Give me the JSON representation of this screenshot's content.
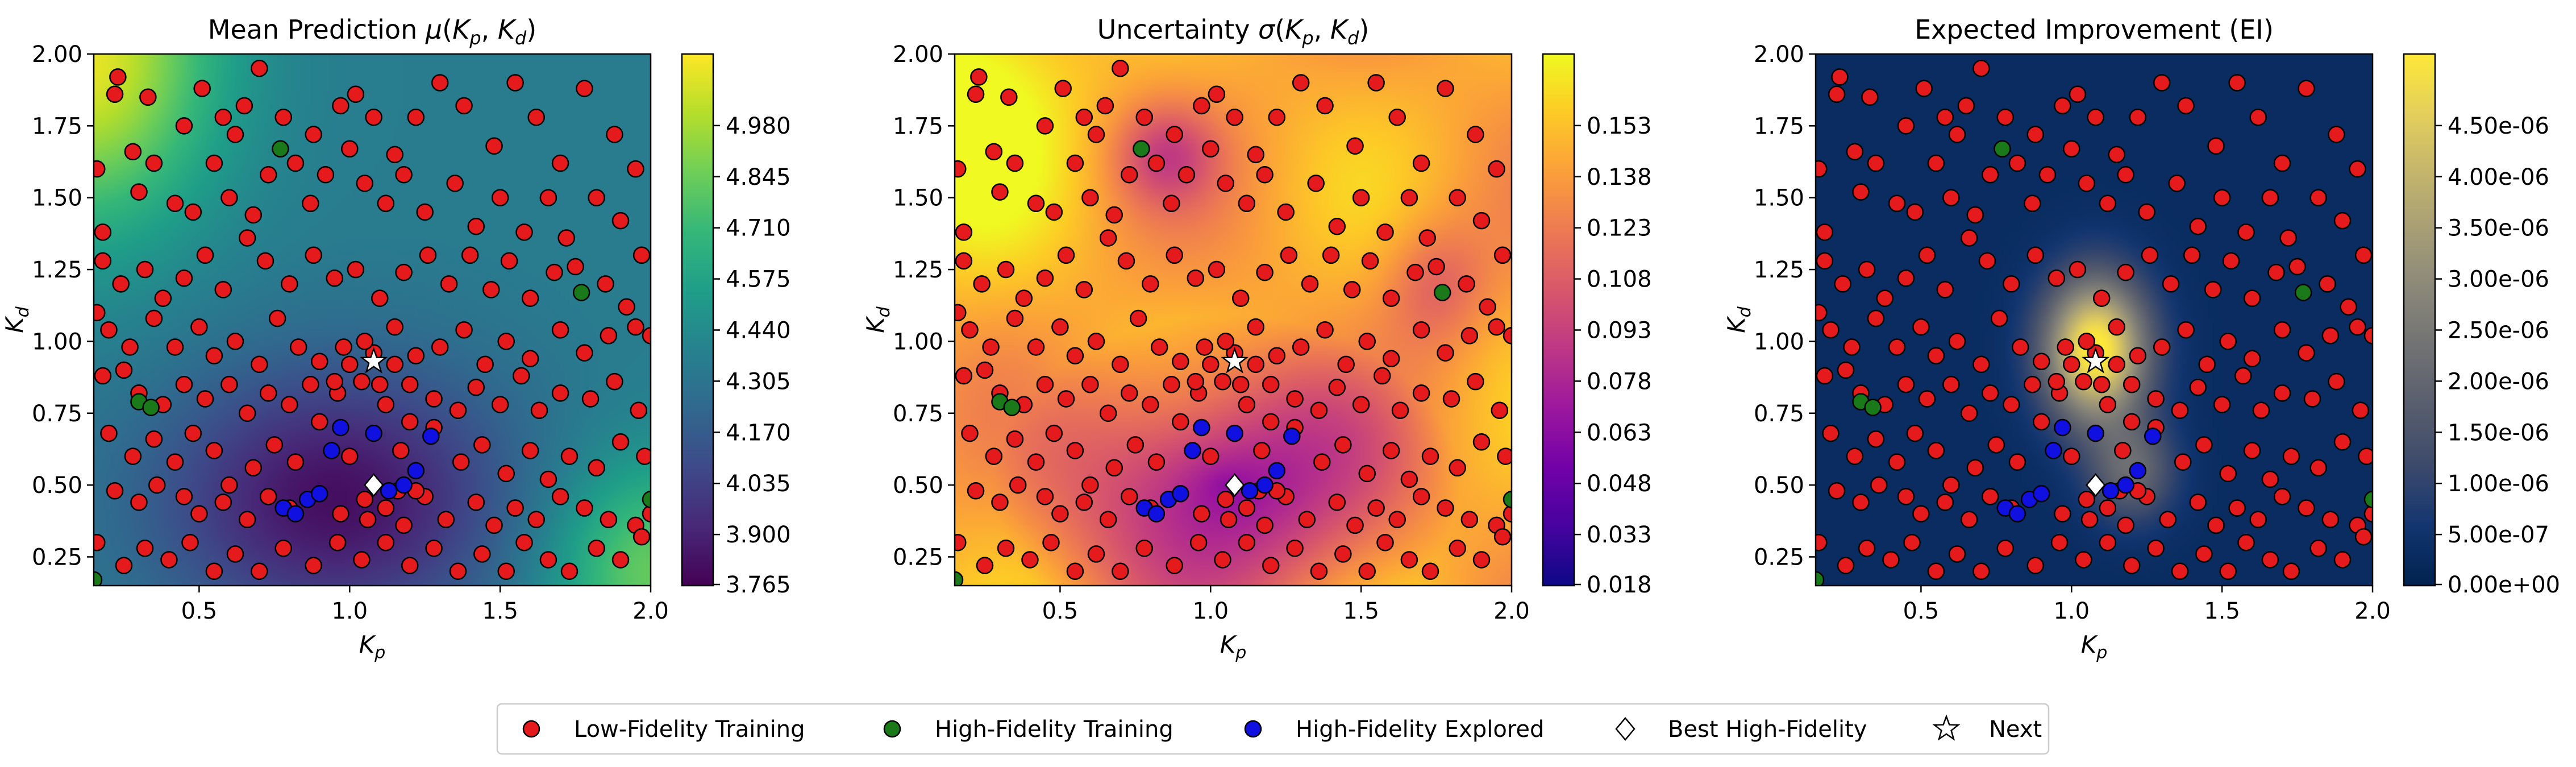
{
  "chart_data": [
    {
      "type": "heatmap",
      "title": "Mean Prediction μ(K_p, K_d)",
      "title_main": "Mean Prediction μ(",
      "title_vars": [
        "K",
        "p",
        "K",
        "d"
      ],
      "xlabel": "K_p",
      "ylabel": "K_d",
      "xlim": [
        0.15,
        2.0
      ],
      "ylim": [
        0.15,
        2.0
      ],
      "xticks": [
        "0.5",
        "1.0",
        "1.5",
        "2.0"
      ],
      "yticks": [
        "0.25",
        "0.50",
        "0.75",
        "1.00",
        "1.25",
        "1.50",
        "1.75",
        "2.00"
      ],
      "colormap": "viridis",
      "colorbar_ticks": [
        "3.765",
        "3.900",
        "4.035",
        "4.170",
        "4.305",
        "4.440",
        "4.575",
        "4.710",
        "4.845",
        "4.980"
      ],
      "colorbar_range": [
        3.765,
        5.08
      ]
    },
    {
      "type": "heatmap",
      "title": "Uncertainty σ(K_p, K_d)",
      "xlabel": "K_p",
      "ylabel": "K_d",
      "xlim": [
        0.15,
        2.0
      ],
      "ylim": [
        0.15,
        2.0
      ],
      "xticks": [
        "0.5",
        "1.0",
        "1.5",
        "2.0"
      ],
      "yticks": [
        "0.25",
        "0.50",
        "0.75",
        "1.00",
        "1.25",
        "1.50",
        "1.75",
        "2.00"
      ],
      "colormap": "plasma",
      "colorbar_ticks": [
        "0.018",
        "0.033",
        "0.048",
        "0.063",
        "0.078",
        "0.093",
        "0.108",
        "0.123",
        "0.138",
        "0.153"
      ],
      "colorbar_range": [
        0.018,
        0.155
      ]
    },
    {
      "type": "heatmap",
      "title": "Expected Improvement (EI)",
      "xlabel": "K_p",
      "ylabel": "K_d",
      "xlim": [
        0.15,
        2.0
      ],
      "ylim": [
        0.15,
        2.0
      ],
      "xticks": [
        "0.5",
        "1.0",
        "1.5",
        "2.0"
      ],
      "yticks": [
        "0.25",
        "0.50",
        "0.75",
        "1.00",
        "1.25",
        "1.50",
        "1.75",
        "2.00"
      ],
      "colormap": "cividis",
      "colorbar_ticks": [
        "0.00e+00",
        "5.00e-07",
        "1.00e-06",
        "1.50e-06",
        "2.00e-06",
        "2.50e-06",
        "3.00e-06",
        "3.50e-06",
        "4.00e-06",
        "4.50e-06"
      ],
      "colorbar_range": [
        0,
        4.8e-06
      ]
    }
  ],
  "titles": {
    "mean": {
      "pre": "Mean Prediction ",
      "sym": "μ"
    },
    "unc": {
      "pre": "Uncertainty ",
      "sym": "σ"
    },
    "ei": {
      "text": "Expected Improvement (EI)"
    }
  },
  "axis_symbols": {
    "K": "K",
    "p": "p",
    "d": "d"
  },
  "points": {
    "low_fidelity": [
      [
        0.23,
        1.92
      ],
      [
        0.22,
        1.86
      ],
      [
        0.33,
        1.85
      ],
      [
        0.45,
        1.75
      ],
      [
        0.51,
        1.88
      ],
      [
        0.58,
        1.78
      ],
      [
        0.65,
        1.82
      ],
      [
        0.62,
        1.72
      ],
      [
        0.7,
        1.95
      ],
      [
        0.78,
        1.78
      ],
      [
        0.88,
        1.72
      ],
      [
        0.97,
        1.82
      ],
      [
        1.02,
        1.86
      ],
      [
        1.08,
        1.78
      ],
      [
        1.15,
        1.65
      ],
      [
        1.22,
        1.78
      ],
      [
        1.3,
        1.9
      ],
      [
        1.38,
        1.82
      ],
      [
        1.48,
        1.68
      ],
      [
        1.55,
        1.9
      ],
      [
        1.62,
        1.78
      ],
      [
        1.7,
        1.62
      ],
      [
        1.78,
        1.88
      ],
      [
        1.88,
        1.72
      ],
      [
        1.95,
        1.6
      ],
      [
        0.16,
        1.6
      ],
      [
        0.18,
        1.38
      ],
      [
        0.28,
        1.66
      ],
      [
        0.3,
        1.52
      ],
      [
        0.35,
        1.62
      ],
      [
        0.42,
        1.48
      ],
      [
        0.48,
        1.45
      ],
      [
        0.55,
        1.62
      ],
      [
        0.6,
        1.5
      ],
      [
        0.68,
        1.44
      ],
      [
        0.73,
        1.58
      ],
      [
        0.82,
        1.62
      ],
      [
        0.87,
        1.48
      ],
      [
        0.92,
        1.58
      ],
      [
        1.0,
        1.67
      ],
      [
        1.05,
        1.55
      ],
      [
        1.12,
        1.48
      ],
      [
        1.18,
        1.58
      ],
      [
        1.25,
        1.45
      ],
      [
        1.35,
        1.55
      ],
      [
        1.42,
        1.4
      ],
      [
        1.5,
        1.5
      ],
      [
        1.58,
        1.38
      ],
      [
        1.66,
        1.5
      ],
      [
        1.72,
        1.36
      ],
      [
        1.82,
        1.5
      ],
      [
        1.9,
        1.42
      ],
      [
        1.97,
        1.3
      ],
      [
        0.18,
        1.28
      ],
      [
        0.24,
        1.2
      ],
      [
        0.32,
        1.25
      ],
      [
        0.38,
        1.15
      ],
      [
        0.45,
        1.22
      ],
      [
        0.52,
        1.3
      ],
      [
        0.58,
        1.18
      ],
      [
        0.66,
        1.36
      ],
      [
        0.72,
        1.28
      ],
      [
        0.8,
        1.2
      ],
      [
        0.88,
        1.3
      ],
      [
        0.95,
        1.22
      ],
      [
        1.02,
        1.25
      ],
      [
        1.1,
        1.15
      ],
      [
        1.18,
        1.24
      ],
      [
        1.26,
        1.3
      ],
      [
        1.33,
        1.2
      ],
      [
        1.4,
        1.3
      ],
      [
        1.47,
        1.18
      ],
      [
        1.53,
        1.28
      ],
      [
        1.6,
        1.15
      ],
      [
        1.68,
        1.24
      ],
      [
        1.75,
        1.26
      ],
      [
        1.85,
        1.2
      ],
      [
        1.92,
        1.12
      ],
      [
        0.16,
        1.1
      ],
      [
        0.2,
        1.04
      ],
      [
        0.27,
        0.98
      ],
      [
        0.35,
        1.08
      ],
      [
        0.42,
        0.98
      ],
      [
        0.5,
        1.05
      ],
      [
        0.55,
        0.95
      ],
      [
        0.62,
        1.0
      ],
      [
        0.7,
        0.92
      ],
      [
        0.76,
        1.08
      ],
      [
        0.83,
        0.98
      ],
      [
        0.9,
        0.93
      ],
      [
        0.98,
        0.98
      ],
      [
        1.08,
        0.96
      ],
      [
        1.15,
        1.05
      ],
      [
        1.22,
        0.95
      ],
      [
        1.3,
        0.98
      ],
      [
        1.38,
        1.04
      ],
      [
        1.45,
        0.92
      ],
      [
        1.52,
        1.0
      ],
      [
        1.6,
        0.94
      ],
      [
        1.7,
        1.04
      ],
      [
        1.78,
        0.96
      ],
      [
        1.86,
        1.02
      ],
      [
        1.95,
        1.05
      ],
      [
        2.0,
        1.02
      ],
      [
        0.18,
        0.88
      ],
      [
        0.25,
        0.9
      ],
      [
        0.3,
        0.82
      ],
      [
        0.38,
        0.78
      ],
      [
        0.45,
        0.85
      ],
      [
        0.52,
        0.8
      ],
      [
        0.6,
        0.85
      ],
      [
        0.66,
        0.75
      ],
      [
        0.73,
        0.82
      ],
      [
        0.8,
        0.78
      ],
      [
        0.87,
        0.85
      ],
      [
        0.96,
        0.82
      ],
      [
        1.04,
        0.86
      ],
      [
        1.12,
        0.78
      ],
      [
        1.2,
        0.85
      ],
      [
        1.28,
        0.8
      ],
      [
        1.36,
        0.76
      ],
      [
        1.42,
        0.84
      ],
      [
        1.5,
        0.78
      ],
      [
        1.57,
        0.88
      ],
      [
        1.63,
        0.76
      ],
      [
        1.7,
        0.82
      ],
      [
        1.8,
        0.8
      ],
      [
        1.88,
        0.86
      ],
      [
        1.96,
        0.76
      ],
      [
        0.2,
        0.68
      ],
      [
        0.28,
        0.6
      ],
      [
        0.35,
        0.66
      ],
      [
        0.42,
        0.58
      ],
      [
        0.48,
        0.68
      ],
      [
        0.55,
        0.62
      ],
      [
        0.6,
        0.5
      ],
      [
        0.68,
        0.56
      ],
      [
        0.75,
        0.64
      ],
      [
        0.82,
        0.58
      ],
      [
        1.0,
        0.6
      ],
      [
        1.17,
        0.62
      ],
      [
        1.37,
        0.58
      ],
      [
        1.44,
        0.64
      ],
      [
        1.52,
        0.54
      ],
      [
        1.6,
        0.62
      ],
      [
        1.66,
        0.52
      ],
      [
        1.73,
        0.6
      ],
      [
        1.82,
        0.56
      ],
      [
        1.9,
        0.65
      ],
      [
        1.98,
        0.6
      ],
      [
        0.22,
        0.48
      ],
      [
        0.3,
        0.44
      ],
      [
        0.36,
        0.5
      ],
      [
        0.45,
        0.46
      ],
      [
        0.5,
        0.4
      ],
      [
        0.58,
        0.44
      ],
      [
        0.66,
        0.38
      ],
      [
        0.73,
        0.46
      ],
      [
        0.8,
        0.42
      ],
      [
        0.97,
        0.4
      ],
      [
        1.05,
        0.45
      ],
      [
        1.12,
        0.42
      ],
      [
        1.18,
        0.36
      ],
      [
        1.25,
        0.46
      ],
      [
        1.32,
        0.38
      ],
      [
        1.42,
        0.44
      ],
      [
        1.48,
        0.36
      ],
      [
        1.55,
        0.42
      ],
      [
        1.62,
        0.38
      ],
      [
        1.7,
        0.46
      ],
      [
        1.78,
        0.42
      ],
      [
        1.86,
        0.38
      ],
      [
        1.95,
        0.36
      ],
      [
        2.0,
        0.4
      ],
      [
        0.16,
        0.3
      ],
      [
        0.25,
        0.22
      ],
      [
        0.32,
        0.28
      ],
      [
        0.4,
        0.24
      ],
      [
        0.47,
        0.3
      ],
      [
        0.55,
        0.2
      ],
      [
        0.62,
        0.26
      ],
      [
        0.7,
        0.2
      ],
      [
        0.78,
        0.28
      ],
      [
        0.88,
        0.22
      ],
      [
        0.96,
        0.3
      ],
      [
        1.04,
        0.24
      ],
      [
        1.12,
        0.3
      ],
      [
        1.2,
        0.22
      ],
      [
        1.28,
        0.28
      ],
      [
        1.36,
        0.2
      ],
      [
        1.44,
        0.26
      ],
      [
        1.52,
        0.2
      ],
      [
        1.58,
        0.3
      ],
      [
        1.66,
        0.24
      ],
      [
        1.73,
        0.2
      ],
      [
        1.82,
        0.28
      ],
      [
        1.9,
        0.24
      ],
      [
        1.97,
        0.32
      ],
      [
        1.0,
        0.92
      ],
      [
        1.05,
        1.0
      ],
      [
        1.15,
        0.92
      ],
      [
        0.95,
        0.86
      ],
      [
        1.2,
        0.72
      ],
      [
        0.9,
        0.72
      ],
      [
        1.28,
        0.7
      ],
      [
        1.1,
        0.85
      ],
      [
        1.06,
        0.38
      ],
      [
        1.22,
        0.48
      ],
      [
        1.16,
        0.48
      ]
    ],
    "high_fidelity": [
      [
        0.77,
        1.67
      ],
      [
        1.77,
        1.17
      ],
      [
        0.3,
        0.79
      ],
      [
        0.34,
        0.77
      ],
      [
        2.0,
        0.45
      ],
      [
        0.15,
        0.17
      ]
    ],
    "explored": [
      [
        0.97,
        0.7
      ],
      [
        1.08,
        0.68
      ],
      [
        1.27,
        0.67
      ],
      [
        0.94,
        0.62
      ],
      [
        0.86,
        0.45
      ],
      [
        0.9,
        0.47
      ],
      [
        1.13,
        0.48
      ],
      [
        1.18,
        0.5
      ],
      [
        1.22,
        0.55
      ],
      [
        0.78,
        0.42
      ],
      [
        0.82,
        0.4
      ]
    ],
    "best": [
      1.08,
      0.5
    ],
    "next": [
      1.08,
      0.93
    ]
  },
  "legend": {
    "items": [
      {
        "label": "Low-Fidelity Training",
        "marker": "circle",
        "color": "#e41a1c"
      },
      {
        "label": "High-Fidelity Training",
        "marker": "circle",
        "color": "#1a7a1a"
      },
      {
        "label": "High-Fidelity Explored",
        "marker": "circle",
        "color": "#1010e0"
      },
      {
        "label": "Best High-Fidelity",
        "marker": "diamond",
        "color": "#ffffff"
      },
      {
        "label": "Next",
        "marker": "star",
        "color": "#ffffff"
      }
    ]
  },
  "colors": {
    "low": "#e41a1c",
    "high": "#1a7a1a",
    "explored": "#1010e0",
    "edge": "#000000"
  }
}
